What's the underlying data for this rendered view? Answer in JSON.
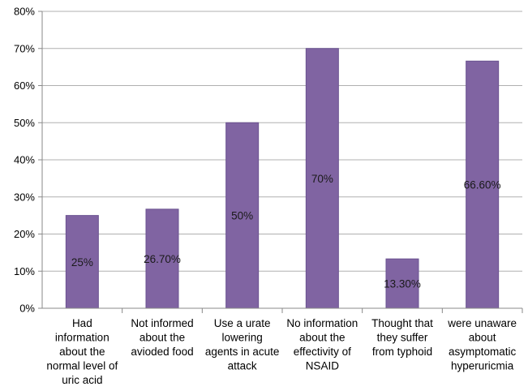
{
  "chart_data": {
    "type": "bar",
    "categories": [
      [
        "Had",
        "information",
        "about the",
        "normal level of",
        "uric acid"
      ],
      [
        "Not informed",
        "about the",
        "avioded food"
      ],
      [
        "Use a urate",
        "lowering",
        "agents in acute",
        "attack"
      ],
      [
        "No information",
        "about the",
        "effectivity of",
        "NSAID"
      ],
      [
        "Thought that",
        "they suffer",
        "from typhoid"
      ],
      [
        "were unaware",
        "about",
        "asymptomatic",
        "hyperuricmia"
      ]
    ],
    "values": [
      25,
      26.7,
      50,
      70,
      13.3,
      66.6
    ],
    "data_labels": [
      "25%",
      "26.70%",
      "50%",
      "70%",
      "13.30%",
      "66.60%"
    ],
    "ylim": [
      0,
      80
    ],
    "yticks": [
      "0%",
      "10%",
      "20%",
      "30%",
      "40%",
      "50%",
      "60%",
      "70%",
      "80%"
    ],
    "grid": true,
    "bar_color": "#8064a2",
    "bar_edge_color": "#6a5290",
    "grid_color": "#b0b0b0"
  }
}
